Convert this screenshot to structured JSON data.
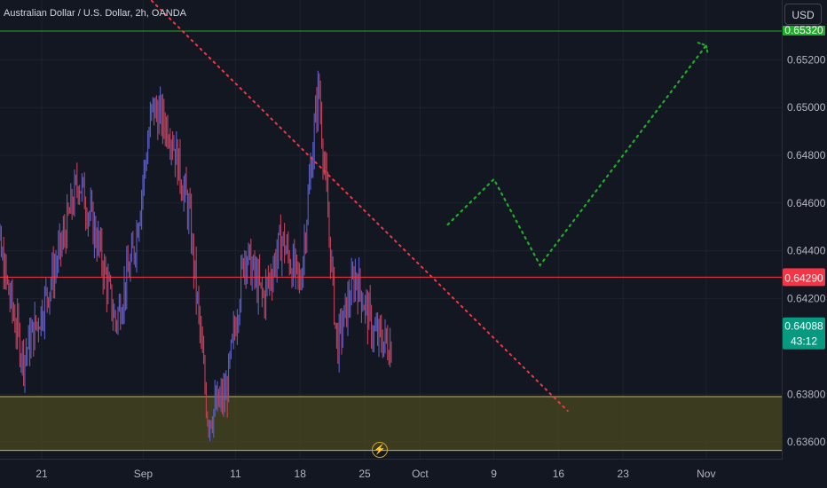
{
  "header": {
    "title": "Australian Dollar / U.S. Dollar, 2h, OANDA",
    "currency": "USD",
    "bolt_glyph": "⚡"
  },
  "colors": {
    "background": "#131722",
    "bull": "#5b5fc7",
    "bear": "#c2405a",
    "red_line": "#f23645",
    "green_line": "#22ab2a",
    "zone": "#4a4a1f",
    "badge_green": "#089981"
  },
  "chart_data": {
    "type": "line",
    "title": "Australian Dollar / U.S. Dollar, 2h, OANDA",
    "xlabel": "",
    "ylabel": "",
    "x_ticks": [
      "21",
      "Sep",
      "11",
      "18",
      "25",
      "Oct",
      "9",
      "16",
      "23",
      "Nov"
    ],
    "y_ticks": [
      "0.65200",
      "0.65000",
      "0.64800",
      "0.64600",
      "0.64400",
      "0.64200",
      "0.63800",
      "0.63600"
    ],
    "ylim": [
      0.6353,
      0.6545
    ],
    "series": [
      {
        "name": "",
        "x": [
          "Aug 15",
          "Aug 17",
          "Aug 19",
          "Aug 21",
          "Aug 23",
          "Aug 25",
          "Aug 27",
          "Aug 29",
          "Aug 31",
          "Sep 2",
          "Sep 4",
          "Sep 6",
          "Sep 8",
          "Sep 10",
          "Sep 12",
          "Sep 14",
          "Sep 16",
          "Sep 18",
          "Sep 20",
          "Sep 22",
          "Sep 24",
          "Sep 26",
          "Sep 28"
        ],
        "values": [
          0.647,
          0.643,
          0.6395,
          0.6415,
          0.644,
          0.647,
          0.6445,
          0.641,
          0.644,
          0.65,
          0.649,
          0.6455,
          0.637,
          0.638,
          0.644,
          0.642,
          0.6445,
          0.6425,
          0.651,
          0.64,
          0.643,
          0.6405,
          0.64
        ]
      }
    ],
    "horizontal_levels": [
      {
        "value": 0.6429,
        "label": "0.64290"
      },
      {
        "value": 0.6532,
        "label": "0.65320"
      }
    ],
    "zone": {
      "from": 0.63565,
      "to": 0.6379
    },
    "last_price": {
      "value": 0.64088,
      "label": "0.64088",
      "countdown": "43:12"
    },
    "trendline": {
      "from": {
        "x": "Aug 31",
        "value": 0.6552
      },
      "to": {
        "x": "Oct 17",
        "value": 0.6373
      }
    },
    "projection": [
      {
        "x": "Oct 4",
        "value": 0.6451
      },
      {
        "x": "Oct 9",
        "value": 0.647
      },
      {
        "x": "Oct 14",
        "value": 0.6434
      },
      {
        "x": "Nov 1",
        "value": 0.6526
      }
    ]
  }
}
